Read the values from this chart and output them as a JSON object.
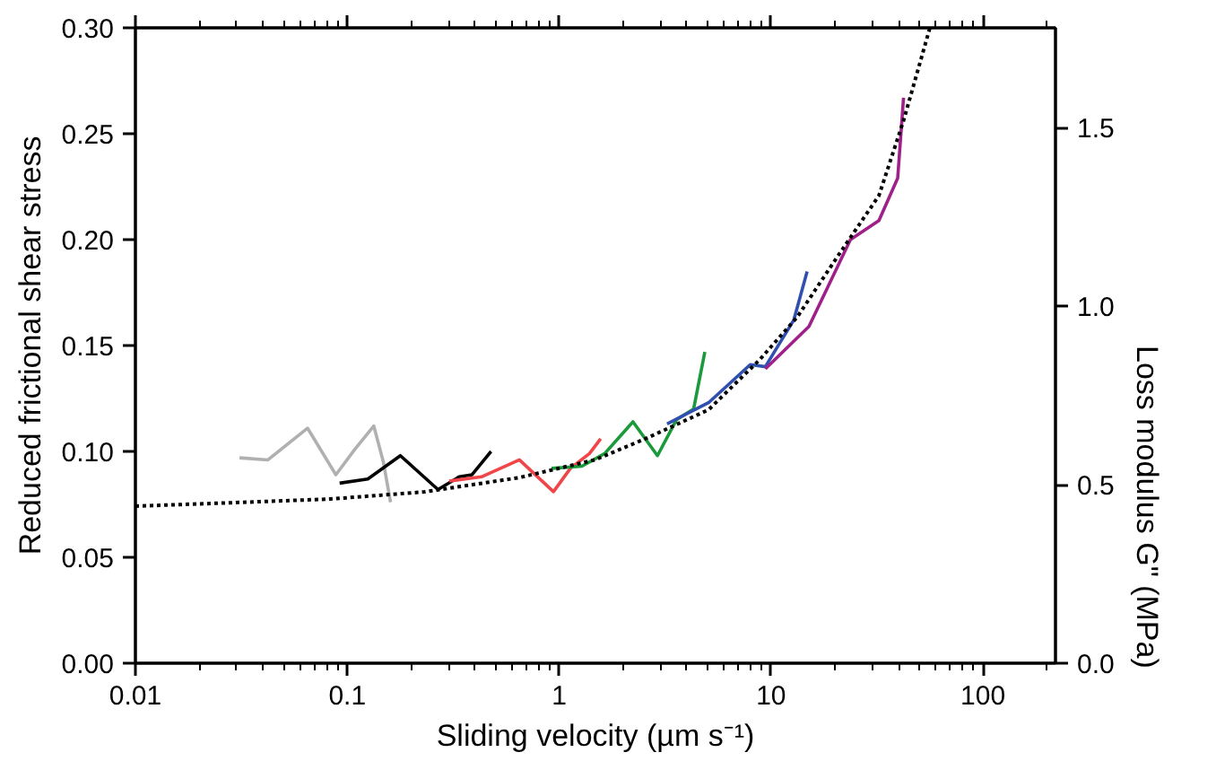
{
  "chart_data": {
    "type": "line",
    "xlabel": "Sliding velocity (µm s⁻¹)",
    "ylabel": "Reduced frictional shear stress",
    "y2label": "Loss modulus G\" (MPa)",
    "log": "x",
    "grid": false,
    "marker": "none",
    "line_style": "solid",
    "xlim": [
      0.01,
      220
    ],
    "xticks": [
      0.01,
      0.1,
      1,
      10,
      100
    ],
    "ylim": [
      0,
      0.3
    ],
    "yticks": [
      {
        "value": 0,
        "label": "0.00"
      },
      {
        "value": 0.05,
        "label": "0.05"
      },
      {
        "value": 0.1,
        "label": "0.10"
      },
      {
        "value": 0.15,
        "label": "0.15"
      },
      {
        "value": 0.2,
        "label": "0.20"
      },
      {
        "value": 0.25,
        "label": "0.25"
      },
      {
        "value": 0.3,
        "label": "0.30"
      }
    ],
    "y2lim": [
      0,
      1.78
    ],
    "y2ticks": [
      {
        "value": 0,
        "label": "0.0"
      },
      {
        "value": 0.5,
        "label": "0.5"
      },
      {
        "value": 1,
        "label": "1.0"
      },
      {
        "value": 1.5,
        "label": "1.5"
      }
    ],
    "series": [
      {
        "color": "#b0b0b0",
        "x": [
          0.031,
          0.0422,
          0.0649,
          0.0883,
          0.1086,
          0.1334,
          0.148,
          0.16
        ],
        "values": [
          0.097,
          0.096,
          0.111,
          0.089,
          0.101,
          0.112,
          0.095,
          0.076
        ]
      },
      {
        "color": "#000000",
        "x": [
          0.092,
          0.125,
          0.178,
          0.268,
          0.337,
          0.388,
          0.477
        ],
        "values": [
          0.085,
          0.087,
          0.098,
          0.082,
          0.088,
          0.089,
          0.1
        ]
      },
      {
        "color": "#f0464a",
        "x": [
          0.303,
          0.43,
          0.649,
          0.94,
          1.13,
          1.39,
          1.57
        ],
        "values": [
          0.086,
          0.088,
          0.096,
          0.081,
          0.092,
          0.099,
          0.106
        ]
      },
      {
        "color": "#1a9a3a",
        "x": [
          0.921,
          1.28,
          1.64,
          2.23,
          2.91,
          3.58,
          4.31,
          4.87
        ],
        "values": [
          0.092,
          0.093,
          0.099,
          0.114,
          0.098,
          0.115,
          0.12,
          0.147
        ]
      },
      {
        "color": "#3050b0",
        "x": [
          3.23,
          5.07,
          7.98,
          9.4,
          12.8,
          14.8
        ],
        "values": [
          0.113,
          0.123,
          0.141,
          0.14,
          0.162,
          0.185
        ]
      },
      {
        "color": "#a0208a",
        "x": [
          9.4,
          15.1,
          23.7,
          32.3,
          39.6,
          42.2
        ],
        "values": [
          0.139,
          0.159,
          0.2,
          0.209,
          0.229,
          0.267
        ]
      },
      {
        "color": "#000000",
        "axis": "y2",
        "line_style": "dotted",
        "x": [
          0.01,
          0.0297,
          0.0832,
          0.232,
          0.649,
          1.48,
          2.58,
          5.07,
          8.83,
          13.3,
          20.1,
          32.3,
          42.2,
          56.2
        ],
        "values": [
          0.44,
          0.45,
          0.46,
          0.48,
          0.52,
          0.57,
          0.63,
          0.71,
          0.85,
          0.97,
          1.13,
          1.31,
          1.52,
          1.78
        ]
      }
    ]
  }
}
